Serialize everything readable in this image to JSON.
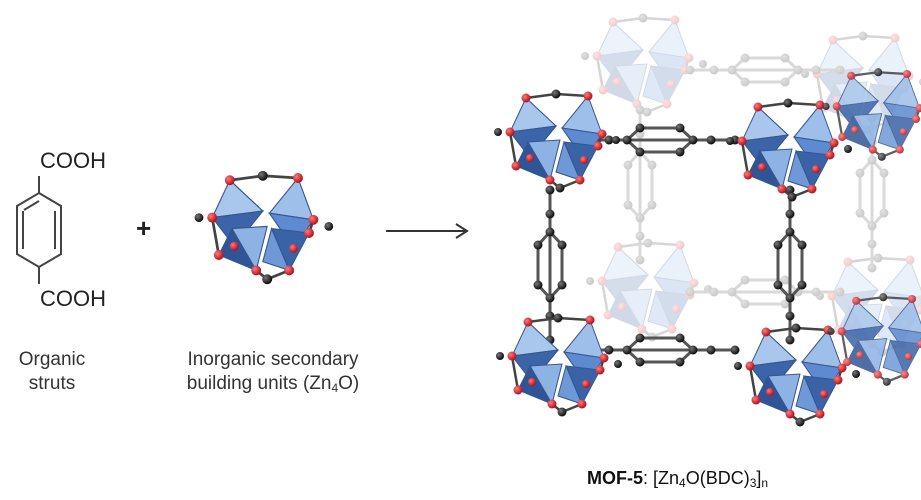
{
  "strut": {
    "top_group": "COOH",
    "bottom_group": "COOH",
    "caption_line1": "Organic",
    "caption_line2": "struts"
  },
  "plus_sign": "+",
  "sbu": {
    "caption_line1": "Inorganic secondary",
    "caption_line2_prefix": "building units (Zn",
    "caption_line2_sub": "4",
    "caption_line2_suffix": "O)"
  },
  "product": {
    "name": "MOF-5",
    "formula_prefix": ": [Zn",
    "formula_sub1": "4",
    "formula_mid": "O(BDC)",
    "formula_sub2": "3",
    "formula_close": "]",
    "formula_sub3": "n"
  },
  "colors": {
    "zn_polyhedron_dark": "#2f5597",
    "zn_polyhedron_mid": "#4f7fc6",
    "zn_polyhedron_light": "#8fb4e3",
    "oxygen_atom": "#d0222a",
    "carbon_atom": "#1a1a1a",
    "bond": "#555555"
  }
}
